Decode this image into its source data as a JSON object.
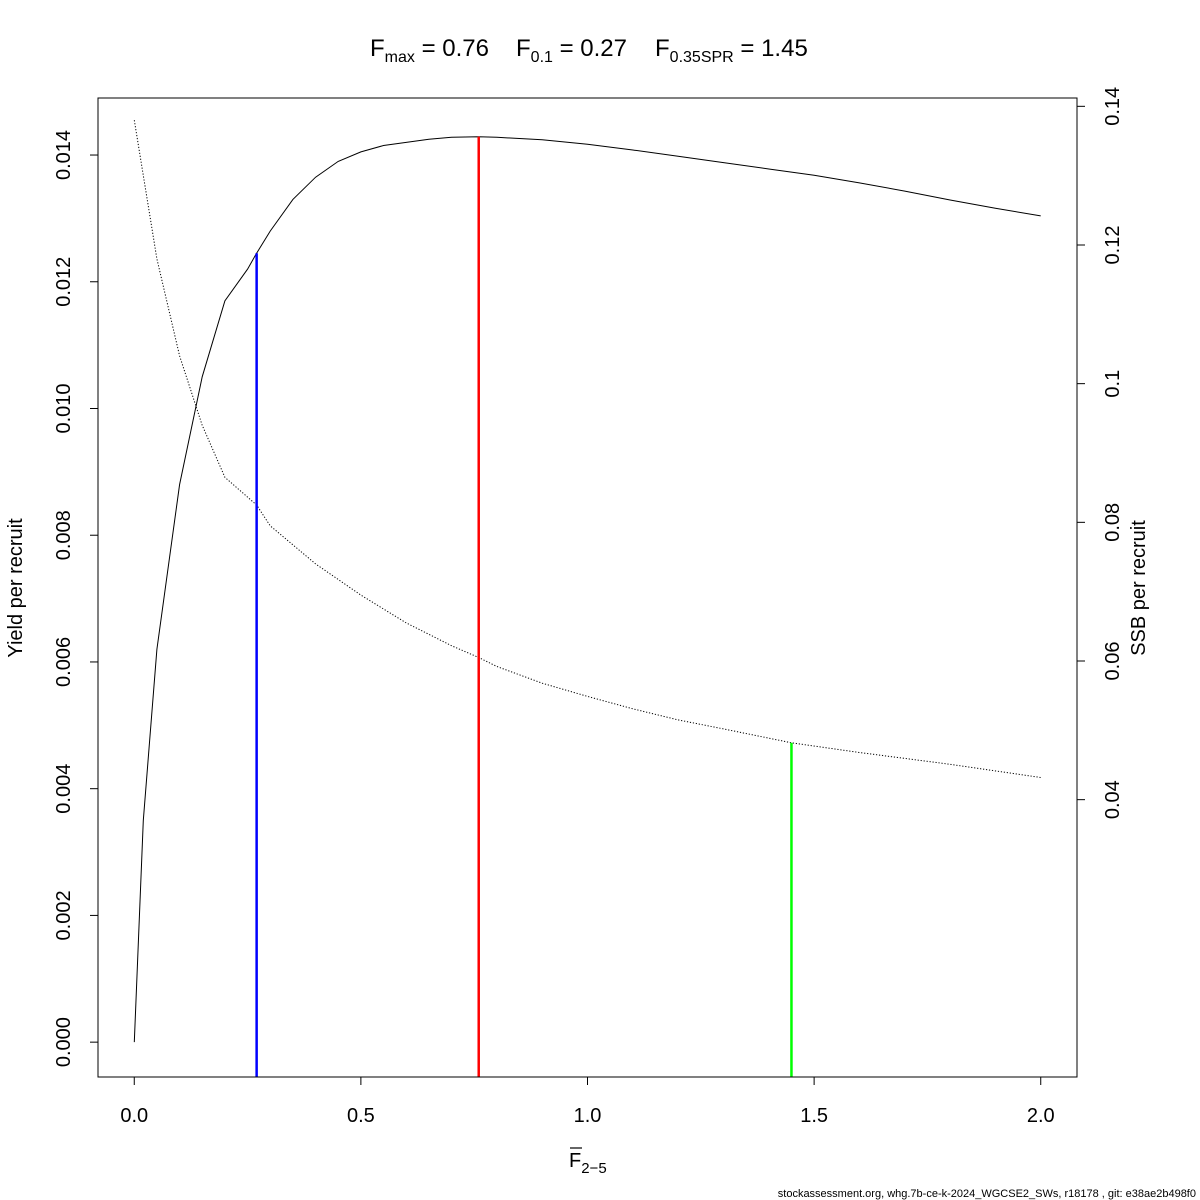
{
  "title": {
    "fmax": {
      "symbol": "F",
      "sub": "max",
      "value": "0.76"
    },
    "f01": {
      "symbol": "F",
      "sub": "0.1",
      "value": "0.27"
    },
    "fspr": {
      "symbol": "F",
      "sub": "0.35SPR",
      "value": "1.45"
    }
  },
  "xlabel": {
    "symbol": "F",
    "sub": "2−5"
  },
  "ylabel_left": "Yield per recruit",
  "ylabel_right": "SSB per recruit",
  "footer": "stockassessment.org, whg.7b-ce-k-2024_WGCSE2_SWs, r18178 , git: e38ae2b498f0",
  "chart_data": {
    "type": "line",
    "xlim": [
      -0.08,
      2.08
    ],
    "ylim_left": [
      -0.00055,
      0.0149
    ],
    "ylim_right": [
      0.0,
      0.1412
    ],
    "x_ticks": [
      0.0,
      0.5,
      1.0,
      1.5,
      2.0
    ],
    "x_tick_labels": [
      "0.0",
      "0.5",
      "1.0",
      "1.5",
      "2.0"
    ],
    "y_left_ticks": [
      0.0,
      0.002,
      0.004,
      0.006,
      0.008,
      0.01,
      0.012,
      0.014
    ],
    "y_left_tick_labels": [
      "0.000",
      "0.002",
      "0.004",
      "0.006",
      "0.008",
      "0.010",
      "0.012",
      "0.014"
    ],
    "y_right_ticks": [
      0.04,
      0.06,
      0.08,
      0.1,
      0.12,
      0.14
    ],
    "y_right_tick_labels": [
      "0.04",
      "0.06",
      "0.08",
      "0.1",
      "0.12",
      "0.14"
    ],
    "grid": false,
    "series": [
      {
        "axis": "left",
        "style": "solid",
        "color": "#000000",
        "x": [
          0.0,
          0.02,
          0.05,
          0.1,
          0.15,
          0.2,
          0.25,
          0.27,
          0.3,
          0.35,
          0.4,
          0.45,
          0.5,
          0.55,
          0.6,
          0.65,
          0.7,
          0.76,
          0.8,
          0.9,
          1.0,
          1.1,
          1.2,
          1.3,
          1.4,
          1.5,
          1.6,
          1.7,
          1.8,
          1.9,
          2.0
        ],
        "y": [
          0.0,
          0.0035,
          0.0062,
          0.0088,
          0.0105,
          0.0117,
          0.0122,
          0.01245,
          0.0128,
          0.0133,
          0.01365,
          0.0139,
          0.01405,
          0.01415,
          0.0142,
          0.01425,
          0.01428,
          0.01429,
          0.01428,
          0.01424,
          0.01417,
          0.01408,
          0.01398,
          0.01388,
          0.01378,
          0.01368,
          0.01356,
          0.01343,
          0.01329,
          0.01316,
          0.01304
        ]
      },
      {
        "axis": "right",
        "style": "dotted",
        "color": "#000000",
        "x": [
          0.0,
          0.05,
          0.1,
          0.15,
          0.2,
          0.27,
          0.3,
          0.4,
          0.5,
          0.6,
          0.7,
          0.76,
          0.8,
          0.9,
          1.0,
          1.1,
          1.2,
          1.3,
          1.45,
          1.6,
          1.8,
          2.0
        ],
        "y": [
          0.138,
          0.118,
          0.104,
          0.094,
          0.0865,
          0.0825,
          0.0795,
          0.074,
          0.0695,
          0.0655,
          0.0622,
          0.0605,
          0.0592,
          0.0568,
          0.0549,
          0.0531,
          0.0515,
          0.0502,
          0.0482,
          0.0468,
          0.0451,
          0.0432
        ]
      }
    ],
    "reference_lines": [
      {
        "name": "Fmax",
        "x": 0.76,
        "y_top_left": 0.01429,
        "color": "#ff0000"
      },
      {
        "name": "F0.1",
        "x": 0.27,
        "y_top_left": 0.01245,
        "color": "#0000ff"
      },
      {
        "name": "F0.35SPR",
        "x": 1.45,
        "y_top_right": 0.0482,
        "color": "#00ff00"
      }
    ]
  }
}
